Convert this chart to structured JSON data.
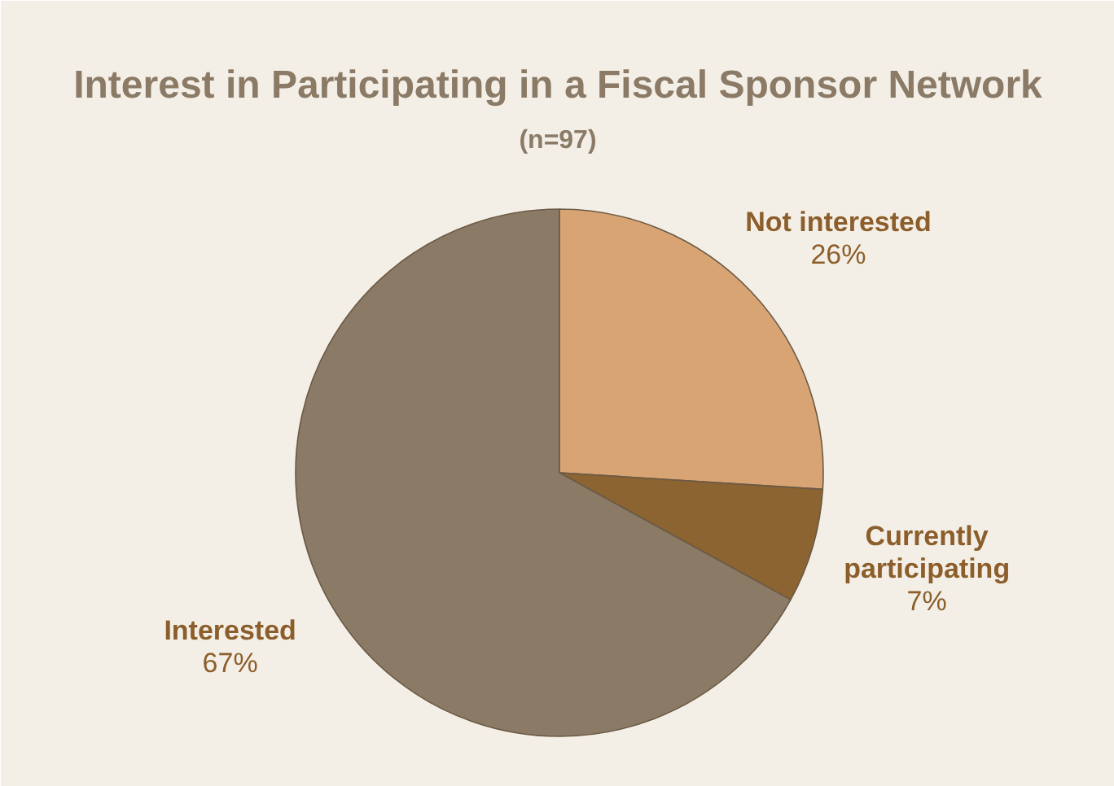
{
  "chart_data": {
    "type": "pie",
    "title": "Interest in Participating in a Fiscal Sponsor Network",
    "subtitle": "(n=97)",
    "categories": [
      "Not interested",
      "Currently participating",
      "Interested"
    ],
    "values": [
      26,
      7,
      67
    ],
    "colors": [
      "#d8a474",
      "#8b6431",
      "#8a7a66"
    ],
    "value_labels": [
      "26%",
      "7%",
      "67%"
    ]
  }
}
